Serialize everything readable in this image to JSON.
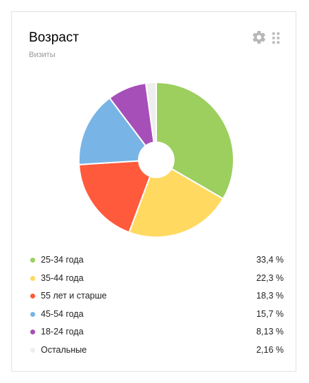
{
  "widget": {
    "title": "Возраст",
    "subtitle": "Визиты",
    "settings_icon": "gear-icon",
    "drag_icon": "drag-handle-icon"
  },
  "chart_data": {
    "type": "pie",
    "donut": true,
    "categories": [
      "25-34 года",
      "35-44 года",
      "55 лет и старше",
      "45-54 года",
      "18-24 года",
      "Остальные"
    ],
    "values": [
      33.4,
      22.3,
      18.3,
      15.7,
      8.13,
      2.16
    ],
    "colors": [
      "#9ccf5e",
      "#ffd960",
      "#ff5a3c",
      "#78b5e6",
      "#a74fb8",
      "#eeeeee"
    ]
  },
  "legend": [
    {
      "label": "25-34 года",
      "value": "33,4 %",
      "color": "#9ccf5e"
    },
    {
      "label": "35-44 года",
      "value": "22,3 %",
      "color": "#ffd960"
    },
    {
      "label": "55 лет и старше",
      "value": "18,3 %",
      "color": "#ff5a3c"
    },
    {
      "label": "45-54 года",
      "value": "15,7 %",
      "color": "#78b5e6"
    },
    {
      "label": "18-24 года",
      "value": "8,13 %",
      "color": "#a74fb8"
    },
    {
      "label": "Остальные",
      "value": "2,16 %",
      "color": "#eeeeee"
    }
  ]
}
